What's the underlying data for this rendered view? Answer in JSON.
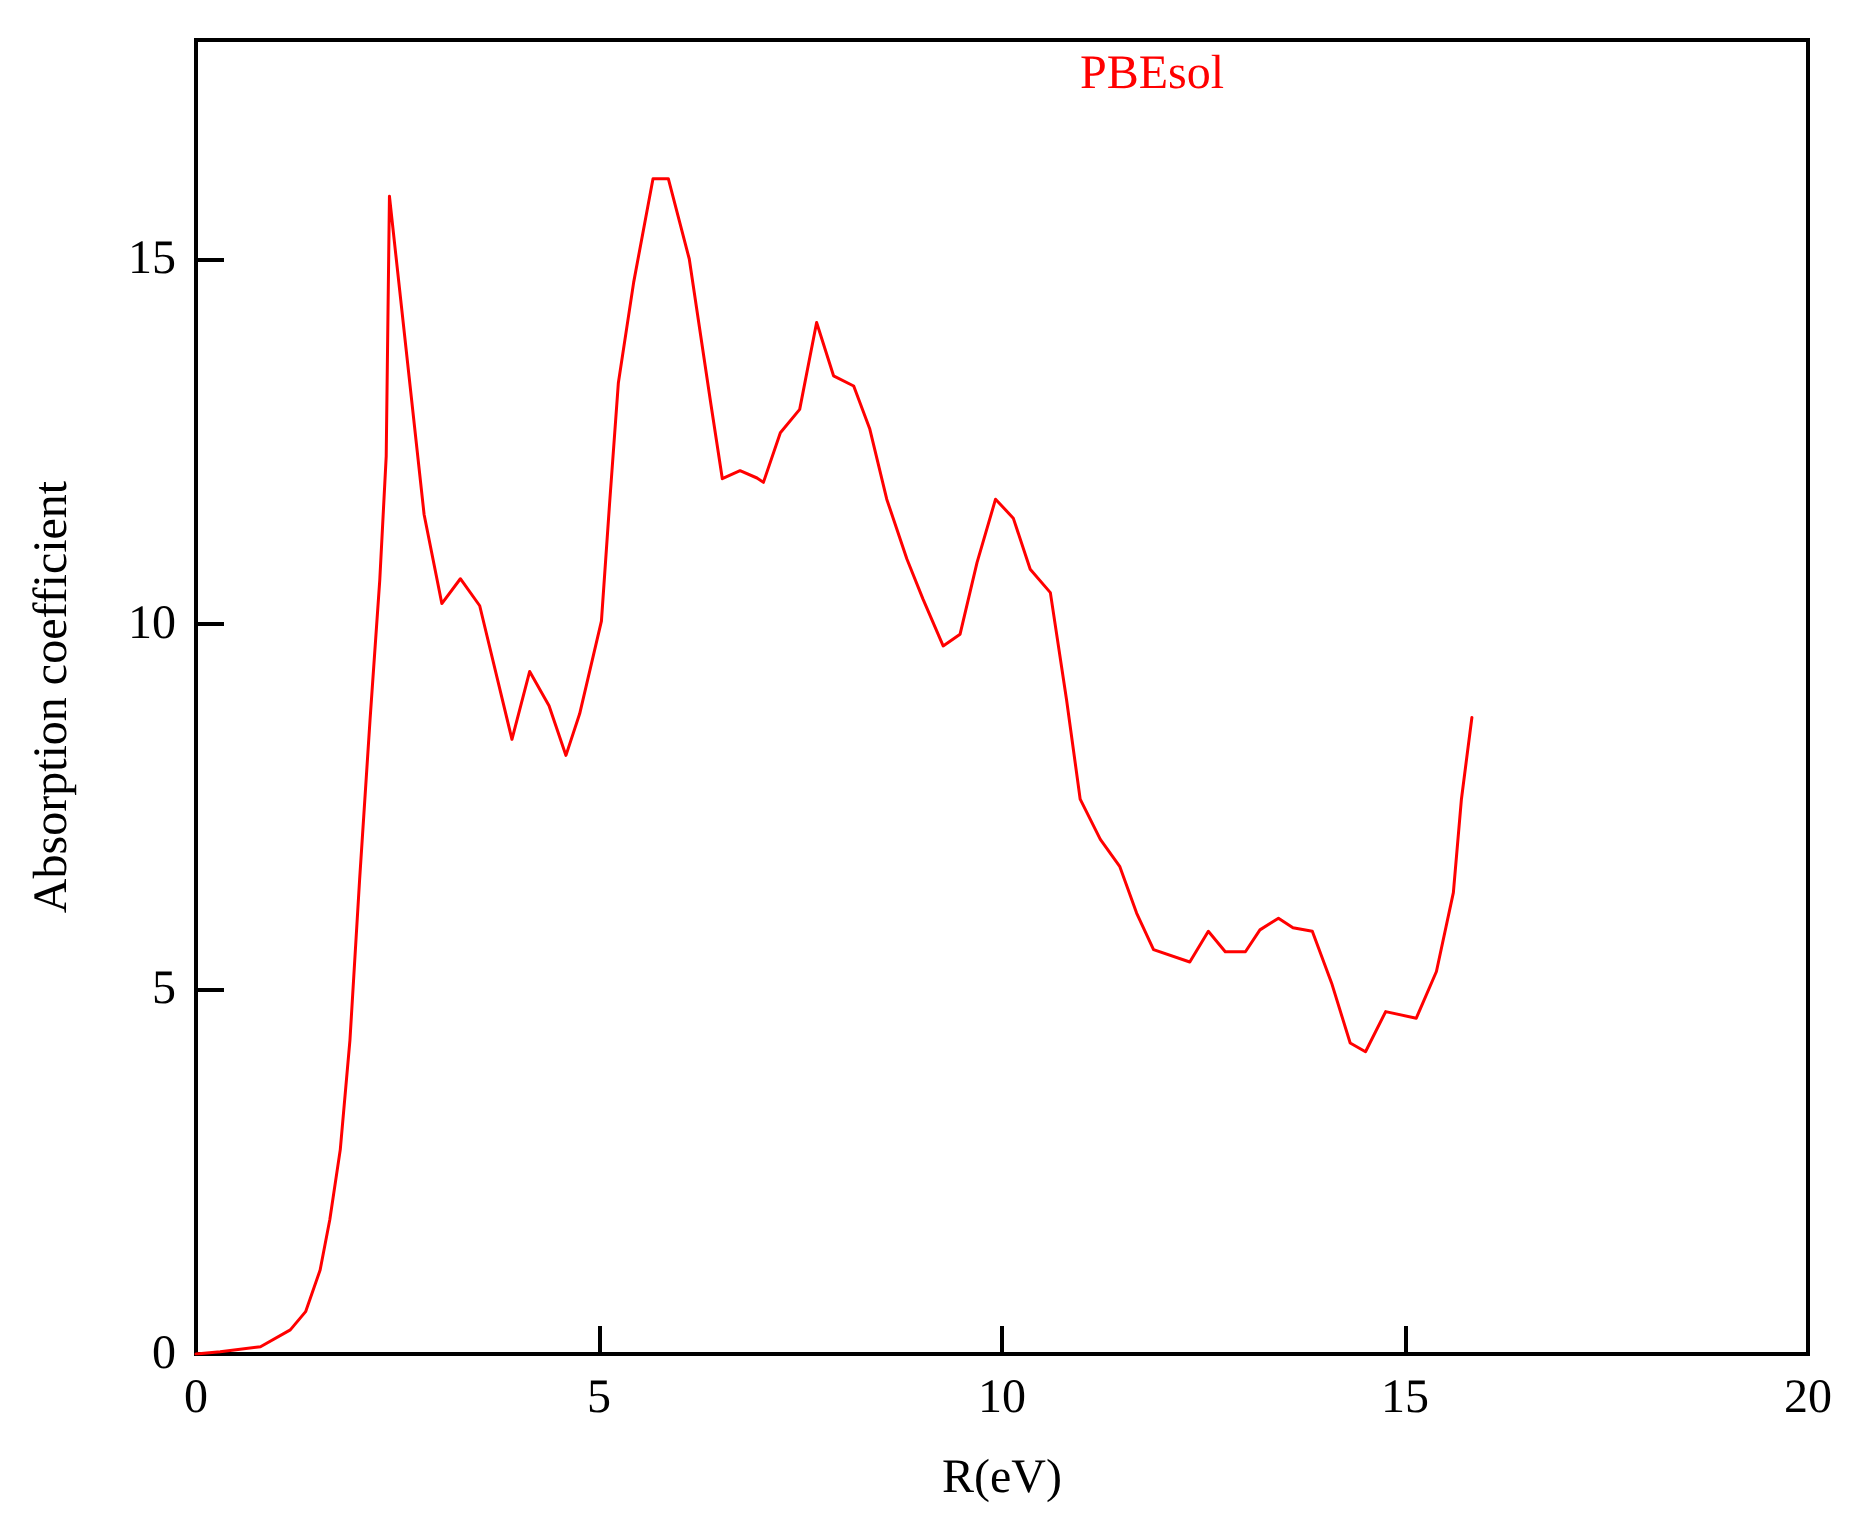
{
  "chart_data": {
    "type": "line",
    "xlabel": "R(eV)",
    "ylabel": "Absorption coefficient",
    "xlim": [
      0,
      20
    ],
    "xticks": [
      0,
      5,
      10,
      15,
      20
    ],
    "ylim": [
      0,
      18
    ],
    "yticks": [
      0,
      5,
      10,
      15
    ],
    "grid": false,
    "legend": "top",
    "marker": "none",
    "line_style": "solid",
    "series": [
      {
        "name": "PBEsol",
        "color": "#ff0000",
        "x": [
          0,
          0.3,
          0.8,
          1.17,
          1.36,
          1.54,
          1.66,
          1.79,
          1.91,
          2.03,
          2.16,
          2.28,
          2.36,
          2.4,
          2.83,
          3.05,
          3.28,
          3.52,
          3.92,
          4.14,
          4.38,
          4.59,
          4.76,
          5.03,
          5.13,
          5.24,
          5.43,
          5.67,
          5.86,
          6.12,
          6.39,
          6.53,
          6.75,
          6.96,
          7.04,
          7.25,
          7.49,
          7.7,
          7.91,
          8.16,
          8.36,
          8.57,
          8.82,
          9.02,
          9.27,
          9.48,
          9.69,
          9.92,
          10.14,
          10.35,
          10.6,
          10.8,
          10.97,
          11.22,
          11.46,
          11.67,
          11.88,
          12.33,
          12.56,
          12.77,
          13.02,
          13.2,
          13.43,
          13.61,
          13.85,
          14.09,
          14.32,
          14.51,
          14.76,
          15.14,
          15.39,
          15.6,
          15.7,
          15.83
        ],
        "values": [
          0,
          0.03,
          0.1,
          0.33,
          0.58,
          1.15,
          1.84,
          2.8,
          4.3,
          6.5,
          8.7,
          10.6,
          12.3,
          15.86,
          11.5,
          10.28,
          10.62,
          10.25,
          8.42,
          9.35,
          8.88,
          8.2,
          8.77,
          10.04,
          11.63,
          13.3,
          14.68,
          16.1,
          16.1,
          15.0,
          13.0,
          11.99,
          12.1,
          12.0,
          11.94,
          12.62,
          12.94,
          14.13,
          13.4,
          13.26,
          12.67,
          11.71,
          10.89,
          10.34,
          9.7,
          9.86,
          10.84,
          11.71,
          11.45,
          10.75,
          10.43,
          8.97,
          7.6,
          7.05,
          6.68,
          6.04,
          5.54,
          5.37,
          5.79,
          5.51,
          5.51,
          5.81,
          5.97,
          5.84,
          5.79,
          5.08,
          4.26,
          4.14,
          4.69,
          4.6,
          5.24,
          6.32,
          7.6,
          8.72
        ]
      }
    ]
  }
}
